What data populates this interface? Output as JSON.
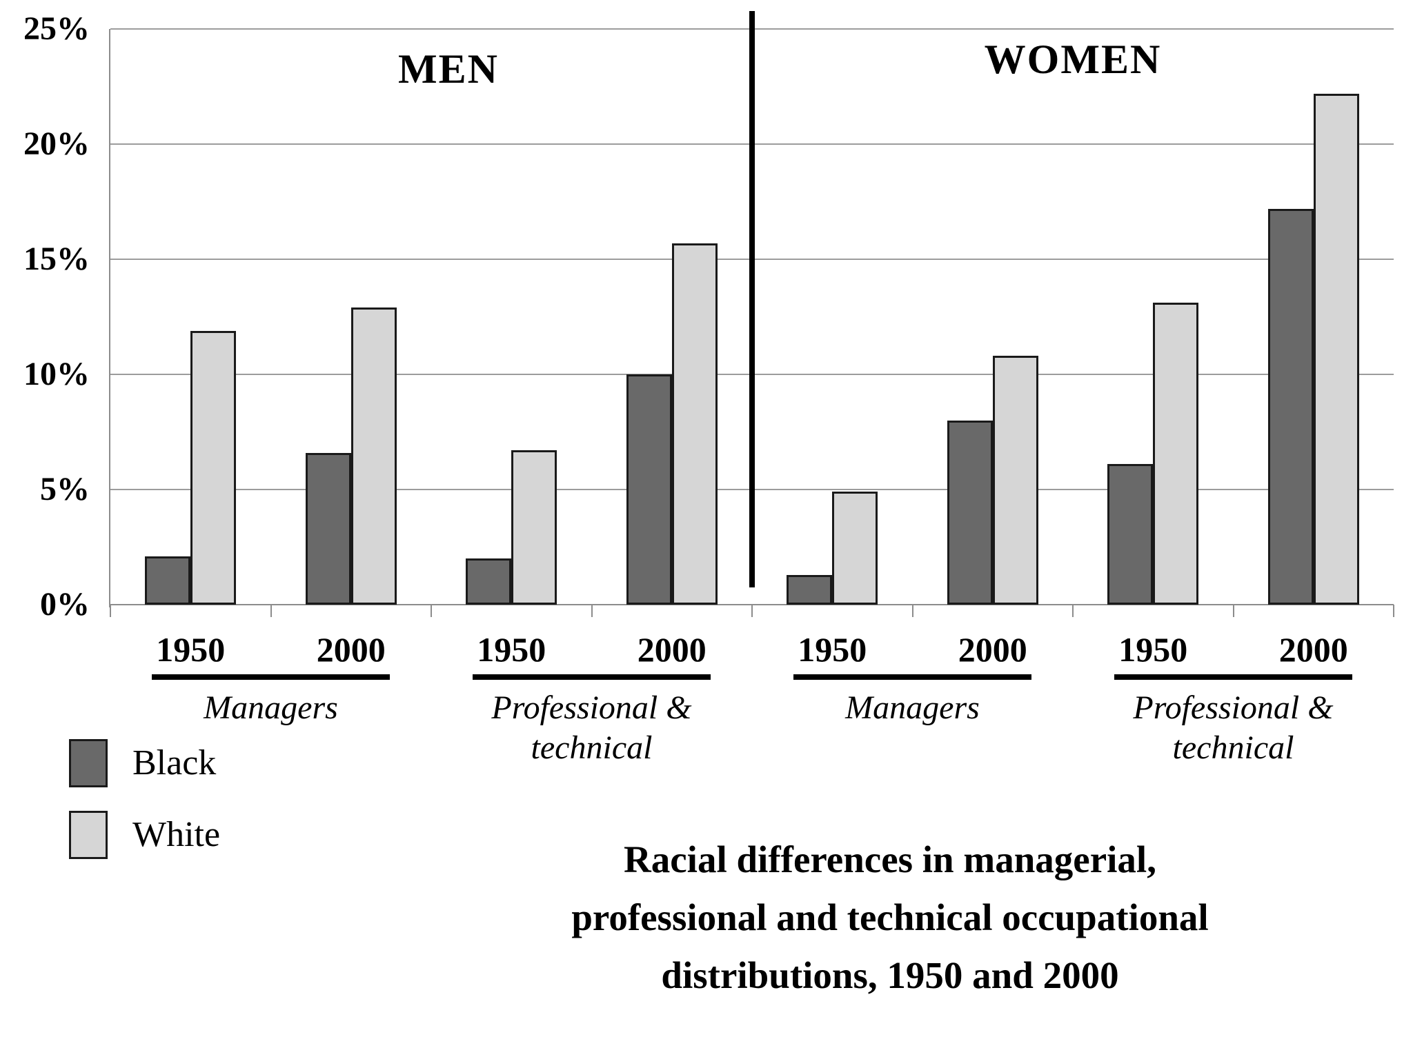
{
  "header": {
    "left_panel": "MEN",
    "right_panel": "WOMEN"
  },
  "y_axis": {
    "tick_labels": [
      "0%",
      "5%",
      "10%",
      "15%",
      "20%",
      "25%"
    ],
    "min": 0,
    "max": 25,
    "step": 5,
    "format": "percent"
  },
  "legend": {
    "items": [
      {
        "label": "Black",
        "color": "#696969"
      },
      {
        "label": "White",
        "color": "#d6d6d6"
      }
    ]
  },
  "title": {
    "lines": [
      "Racial differences in managerial,",
      "professional and technical occupational",
      "distributions, 1950 and 2000"
    ]
  },
  "colors": {
    "black_series": "#696969",
    "white_series": "#d6d6d6",
    "bar_border": "#1a1a1a",
    "gridline": "#9c9c9c",
    "axis": "#8c8c8c",
    "divider": "#000000",
    "underline": "#000000",
    "background": "#ffffff"
  },
  "chart_data": {
    "type": "bar",
    "ylim": [
      0,
      25
    ],
    "ytick_step": 5,
    "grid": true,
    "legend_position": "bottom-left",
    "series_names": [
      "Black",
      "White"
    ],
    "panels": [
      {
        "label": "MEN",
        "groups": [
          {
            "label": "Managers",
            "label_lines": [
              "Managers"
            ],
            "categories": [
              "1950",
              "2000"
            ],
            "series": [
              {
                "name": "Black",
                "values": [
                  2.1,
                  6.6
                ]
              },
              {
                "name": "White",
                "values": [
                  11.9,
                  12.9
                ]
              }
            ]
          },
          {
            "label": "Professional & technical",
            "label_lines": [
              "Professional &",
              "technical"
            ],
            "categories": [
              "1950",
              "2000"
            ],
            "series": [
              {
                "name": "Black",
                "values": [
                  2.0,
                  10.0
                ]
              },
              {
                "name": "White",
                "values": [
                  6.7,
                  15.7
                ]
              }
            ]
          }
        ]
      },
      {
        "label": "WOMEN",
        "groups": [
          {
            "label": "Managers",
            "label_lines": [
              "Managers"
            ],
            "categories": [
              "1950",
              "2000"
            ],
            "series": [
              {
                "name": "Black",
                "values": [
                  1.3,
                  8.0
                ]
              },
              {
                "name": "White",
                "values": [
                  4.9,
                  10.8
                ]
              }
            ]
          },
          {
            "label": "Professional & technical",
            "label_lines": [
              "Professional &",
              "technical"
            ],
            "categories": [
              "1950",
              "2000"
            ],
            "series": [
              {
                "name": "Black",
                "values": [
                  6.1,
                  17.2
                ]
              },
              {
                "name": "White",
                "values": [
                  13.1,
                  22.2
                ]
              }
            ]
          }
        ]
      }
    ]
  }
}
